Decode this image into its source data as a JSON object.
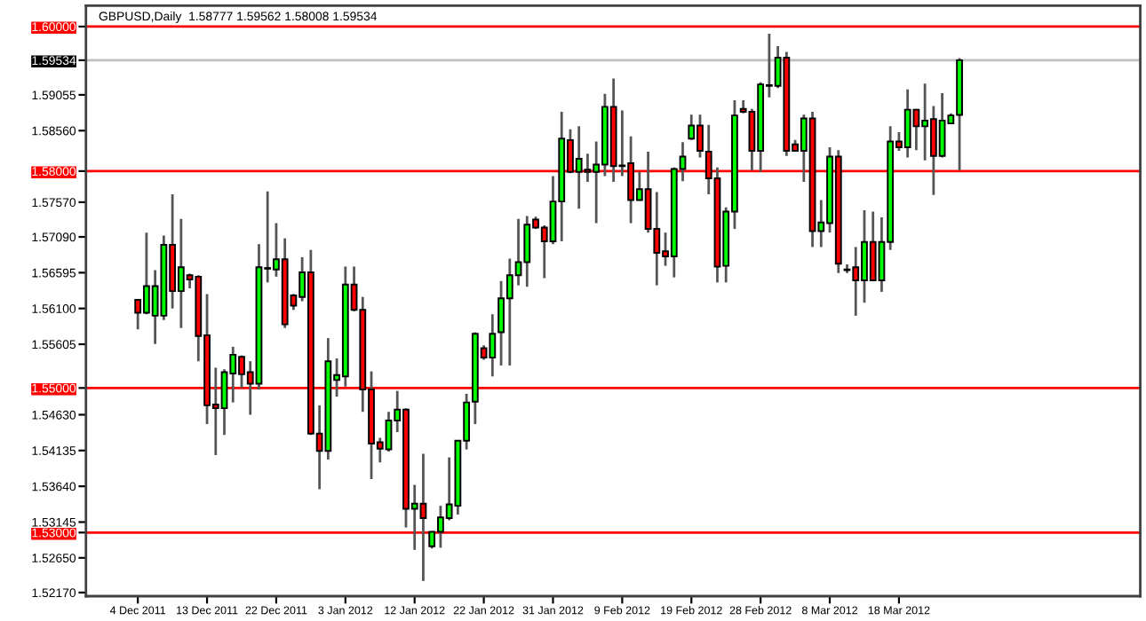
{
  "chart_data": {
    "type": "candlestick",
    "title": "GBPUSD,Daily  1.58777 1.59562 1.58008 1.59534",
    "categories": [
      "4 Dec 2011",
      null,
      null,
      null,
      null,
      null,
      null,
      null,
      "13 Dec 2011",
      null,
      null,
      null,
      null,
      null,
      null,
      null,
      "22 Dec 2011",
      null,
      null,
      null,
      null,
      null,
      null,
      null,
      "3 Jan 2012",
      null,
      null,
      null,
      null,
      null,
      null,
      null,
      "12 Jan 2012",
      null,
      null,
      null,
      null,
      null,
      null,
      null,
      "22 Jan 2012",
      null,
      null,
      null,
      null,
      null,
      null,
      null,
      "31 Jan 2012",
      null,
      null,
      null,
      null,
      null,
      null,
      null,
      "9 Feb 2012",
      null,
      null,
      null,
      null,
      null,
      null,
      null,
      "19 Feb 2012",
      null,
      null,
      null,
      null,
      null,
      null,
      null,
      "28 Feb 2012",
      null,
      null,
      null,
      null,
      null,
      null,
      null,
      "8 Mar 2012",
      null,
      null,
      null,
      null,
      null,
      null,
      null,
      "18 Mar 2012",
      null,
      null,
      null,
      null,
      null,
      null,
      null
    ],
    "ohlc": [
      [
        1.5622,
        1.5622,
        1.5581,
        1.5604
      ],
      [
        1.5604,
        1.5715,
        1.5602,
        1.5641
      ],
      [
        1.56,
        1.5663,
        1.5561,
        1.5641
      ],
      [
        1.56,
        1.5711,
        1.5594,
        1.5698
      ],
      [
        1.5698,
        1.5768,
        1.561,
        1.5634
      ],
      [
        1.5634,
        1.5734,
        1.5583,
        1.5667
      ],
      [
        1.5656,
        1.5658,
        1.5638,
        1.565
      ],
      [
        1.5654,
        1.5656,
        1.5537,
        1.5572
      ],
      [
        1.5573,
        1.563,
        1.545,
        1.5476
      ],
      [
        1.5477,
        1.5528,
        1.5407,
        1.5472
      ],
      [
        1.5472,
        1.5526,
        1.5435,
        1.5522
      ],
      [
        1.552,
        1.5557,
        1.548,
        1.5546
      ],
      [
        1.5543,
        1.5545,
        1.55,
        1.5519
      ],
      [
        1.5522,
        1.5537,
        1.5463,
        1.5506
      ],
      [
        1.5506,
        1.5699,
        1.5498,
        1.5667
      ],
      [
        1.5666,
        1.5772,
        1.5646,
        1.5665
      ],
      [
        1.5664,
        1.5728,
        1.5654,
        1.5678
      ],
      [
        1.5678,
        1.5707,
        1.5583,
        1.5588
      ],
      [
        1.5628,
        1.563,
        1.5608,
        1.5614
      ],
      [
        1.5626,
        1.5681,
        1.562,
        1.566
      ],
      [
        1.566,
        1.5691,
        1.5435,
        1.5437
      ],
      [
        1.5437,
        1.5476,
        1.536,
        1.5413
      ],
      [
        1.5413,
        1.5569,
        1.5401,
        1.5537
      ],
      [
        1.5511,
        1.5541,
        1.5488,
        1.5518
      ],
      [
        1.5516,
        1.5668,
        1.5502,
        1.5643
      ],
      [
        1.5643,
        1.5668,
        1.5606,
        1.5608
      ],
      [
        1.5608,
        1.5626,
        1.5467,
        1.5498
      ],
      [
        1.5498,
        1.5523,
        1.5374,
        1.5423
      ],
      [
        1.5425,
        1.5431,
        1.5397,
        1.5416
      ],
      [
        1.5415,
        1.5467,
        1.5412,
        1.5455
      ],
      [
        1.5455,
        1.5496,
        1.5439,
        1.547
      ],
      [
        1.547,
        1.5472,
        1.5307,
        1.5333
      ],
      [
        1.5333,
        1.5366,
        1.5276,
        1.534
      ],
      [
        1.534,
        1.5409,
        1.5233,
        1.532
      ],
      [
        1.5281,
        1.5302,
        1.5278,
        1.5301
      ],
      [
        1.5301,
        1.5337,
        1.5279,
        1.5321
      ],
      [
        1.532,
        1.5404,
        1.5317,
        1.5339
      ],
      [
        1.5337,
        1.5428,
        1.5325,
        1.5427
      ],
      [
        1.5427,
        1.5492,
        1.5415,
        1.548
      ],
      [
        1.5481,
        1.5577,
        1.545,
        1.5575
      ],
      [
        1.5555,
        1.5559,
        1.5539,
        1.5542
      ],
      [
        1.5542,
        1.5602,
        1.5516,
        1.5575
      ],
      [
        1.5577,
        1.5648,
        1.5531,
        1.5624
      ],
      [
        1.5624,
        1.5679,
        1.5531,
        1.5656
      ],
      [
        1.5656,
        1.5734,
        1.5642,
        1.5674
      ],
      [
        1.5674,
        1.5738,
        1.564,
        1.5726
      ],
      [
        1.5733,
        1.5737,
        1.572,
        1.5722
      ],
      [
        1.5722,
        1.5725,
        1.5652,
        1.5703
      ],
      [
        1.5703,
        1.5793,
        1.5699,
        1.5758
      ],
      [
        1.5758,
        1.5882,
        1.5703,
        1.5845
      ],
      [
        1.5843,
        1.5858,
        1.5797,
        1.5799
      ],
      [
        1.5799,
        1.5862,
        1.5748,
        1.5817
      ],
      [
        1.5802,
        1.5824,
        1.5785,
        1.5799
      ],
      [
        1.5799,
        1.5841,
        1.5728,
        1.5809
      ],
      [
        1.5809,
        1.5907,
        1.5793,
        1.5889
      ],
      [
        1.5889,
        1.5928,
        1.5785,
        1.5807
      ],
      [
        1.5808,
        1.5884,
        1.5793,
        1.5807
      ],
      [
        1.5811,
        1.5848,
        1.5728,
        1.576
      ],
      [
        1.576,
        1.5799,
        1.5759,
        1.5775
      ],
      [
        1.5775,
        1.5827,
        1.5715,
        1.572
      ],
      [
        1.572,
        1.5771,
        1.5642,
        1.5687
      ],
      [
        1.5689,
        1.5715,
        1.5669,
        1.5682
      ],
      [
        1.5682,
        1.5805,
        1.5653,
        1.5803
      ],
      [
        1.5803,
        1.584,
        1.5786,
        1.582
      ],
      [
        1.5845,
        1.5878,
        1.5843,
        1.5863
      ],
      [
        1.5863,
        1.5878,
        1.5819,
        1.5828
      ],
      [
        1.5827,
        1.5864,
        1.5768,
        1.579
      ],
      [
        1.579,
        1.5805,
        1.5646,
        1.5668
      ],
      [
        1.5669,
        1.575,
        1.5646,
        1.5744
      ],
      [
        1.5744,
        1.5898,
        1.572,
        1.5877
      ],
      [
        1.5886,
        1.5898,
        1.588,
        1.5882
      ],
      [
        1.5882,
        1.5886,
        1.5801,
        1.5828
      ],
      [
        1.5828,
        1.5923,
        1.5799,
        1.592
      ],
      [
        1.5918,
        1.599,
        1.5902,
        1.5919
      ],
      [
        1.5918,
        1.5973,
        1.5915,
        1.5957
      ],
      [
        1.5957,
        1.5965,
        1.5821,
        1.5828
      ],
      [
        1.5837,
        1.5843,
        1.5827,
        1.5828
      ],
      [
        1.5828,
        1.5878,
        1.5785,
        1.5873
      ],
      [
        1.5873,
        1.5882,
        1.5695,
        1.5717
      ],
      [
        1.5717,
        1.576,
        1.5695,
        1.5729
      ],
      [
        1.5728,
        1.5833,
        1.5715,
        1.582
      ],
      [
        1.582,
        1.5829,
        1.5659,
        1.5672
      ],
      [
        1.5664,
        1.5671,
        1.5659,
        1.5663
      ],
      [
        1.5667,
        1.5695,
        1.56,
        1.5649
      ],
      [
        1.5649,
        1.5746,
        1.5618,
        1.5702
      ],
      [
        1.5702,
        1.5744,
        1.5648,
        1.5649
      ],
      [
        1.5649,
        1.5736,
        1.5633,
        1.5702
      ],
      [
        1.5702,
        1.5862,
        1.5691,
        1.5841
      ],
      [
        1.5841,
        1.5854,
        1.5828,
        1.5833
      ],
      [
        1.5833,
        1.5913,
        1.5819,
        1.5885
      ],
      [
        1.5885,
        1.5886,
        1.5829,
        1.5862
      ],
      [
        1.5862,
        1.5921,
        1.5815,
        1.587
      ],
      [
        1.5872,
        1.589,
        1.5767,
        1.5821
      ],
      [
        1.5821,
        1.5908,
        1.5819,
        1.587
      ],
      [
        1.5866,
        1.588,
        1.5866,
        1.5877
      ],
      [
        1.58777,
        1.59562,
        1.58008,
        1.59534
      ]
    ],
    "colors": [
      "#ff0000",
      "#00ff00",
      "#00ff00",
      "#00ff00",
      "#ff0000",
      "#00ff00",
      "#ff0000",
      "#ff0000",
      "#ff0000",
      "#ff0000",
      "#00ff00",
      "#00ff00",
      "#ff0000",
      "#ff0000",
      "#00ff00",
      "#ff0000",
      "#00ff00",
      "#ff0000",
      "#ff0000",
      "#00ff00",
      "#ff0000",
      "#ff0000",
      "#00ff00",
      "#00ff00",
      "#00ff00",
      "#ff0000",
      "#ff0000",
      "#ff0000",
      "#ff0000",
      "#00ff00",
      "#00ff00",
      "#ff0000",
      "#00ff00",
      "#ff0000",
      "#00ff00",
      "#00ff00",
      "#00ff00",
      "#00ff00",
      "#00ff00",
      "#00ff00",
      "#ff0000",
      "#00ff00",
      "#00ff00",
      "#00ff00",
      "#00ff00",
      "#00ff00",
      "#ff0000",
      "#ff0000",
      "#00ff00",
      "#00ff00",
      "#ff0000",
      "#00ff00",
      "#ff0000",
      "#00ff00",
      "#00ff00",
      "#ff0000",
      "#ff0000",
      "#ff0000",
      "#00ff00",
      "#ff0000",
      "#ff0000",
      "#ff0000",
      "#00ff00",
      "#00ff00",
      "#00ff00",
      "#ff0000",
      "#ff0000",
      "#ff0000",
      "#00ff00",
      "#00ff00",
      "#ff0000",
      "#ff0000",
      "#00ff00",
      "#00ff00",
      "#00ff00",
      "#ff0000",
      "#ff0000",
      "#00ff00",
      "#ff0000",
      "#00ff00",
      "#00ff00",
      "#ff0000",
      "#ff0000",
      "#ff0000",
      "#00ff00",
      "#ff0000",
      "#00ff00",
      "#00ff00",
      "#ff0000",
      "#00ff00",
      "#ff0000",
      "#00ff00",
      "#ff0000",
      "#00ff00",
      "#00ff00",
      "#00ff00"
    ],
    "ylim": [
      1.5212,
      1.6029
    ],
    "yticks": [
      {
        "value": 1.5217,
        "label": "1.52170"
      },
      {
        "value": 1.5265,
        "label": "1.52650"
      },
      {
        "value": 1.53,
        "label": "1.53000"
      },
      {
        "value": 1.53145,
        "label": "1.53145"
      },
      {
        "value": 1.5364,
        "label": "1.53640"
      },
      {
        "value": 1.54135,
        "label": "1.54135"
      },
      {
        "value": 1.5463,
        "label": "1.54630"
      },
      {
        "value": 1.55,
        "label": "1.55000"
      },
      {
        "value": 1.55605,
        "label": "1.55605"
      },
      {
        "value": 1.561,
        "label": "1.56100"
      },
      {
        "value": 1.56595,
        "label": "1.56595"
      },
      {
        "value": 1.5709,
        "label": "1.57090"
      },
      {
        "value": 1.5757,
        "label": "1.57570"
      },
      {
        "value": 1.58,
        "label": "1.58000"
      },
      {
        "value": 1.5856,
        "label": "1.58560"
      },
      {
        "value": 1.59055,
        "label": "1.59055"
      },
      {
        "value": 1.59534,
        "label": "1.59534"
      },
      {
        "value": 1.6,
        "label": "1.60000"
      }
    ],
    "ref_lines": [
      {
        "axis": "y",
        "value": 1.6,
        "color": "#ff0000"
      },
      {
        "axis": "y",
        "value": 1.59534,
        "color": "#c0c0c0"
      },
      {
        "axis": "y",
        "value": 1.58,
        "color": "#ff0000"
      },
      {
        "axis": "y",
        "value": 1.55,
        "color": "#ff0000"
      },
      {
        "axis": "y",
        "value": 1.53,
        "color": "#ff0000"
      }
    ],
    "grid": false
  }
}
